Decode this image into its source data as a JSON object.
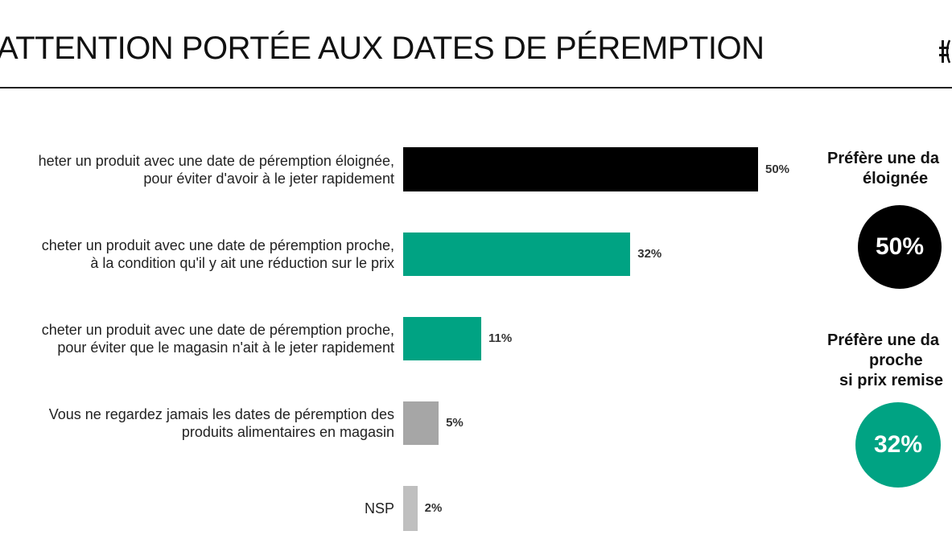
{
  "header": {
    "title": "ATTENTION PORTÉE AUX DATES DE PÉREMPTION"
  },
  "chart_data": {
    "type": "bar",
    "orientation": "horizontal",
    "categories": [
      [
        "heter un produit avec une date de péremption éloignée,",
        "pour éviter d'avoir à le jeter rapidement"
      ],
      [
        "cheter un produit avec une date de péremption proche,",
        "à la condition qu'il y ait une réduction sur le prix"
      ],
      [
        "cheter un produit avec une date de péremption proche,",
        "pour éviter que le magasin n'ait à le jeter rapidement"
      ],
      [
        "Vous ne regardez jamais les dates de péremption des",
        "produits alimentaires en magasin"
      ],
      [
        "NSP"
      ]
    ],
    "values": [
      50,
      32,
      11,
      5,
      2
    ],
    "value_labels": [
      "50%",
      "32%",
      "11%",
      "5%",
      "2%"
    ],
    "colors": [
      "#000000",
      "#00a383",
      "#00a383",
      "#a6a6a6",
      "#bfbfbf"
    ],
    "xlim": [
      0,
      100
    ],
    "grid": false
  },
  "side": {
    "items": [
      {
        "lines": [
          "Préfère une da",
          "éloignée"
        ],
        "value": "50%",
        "color": "#000000"
      },
      {
        "lines": [
          "Préfère une da",
          "proche",
          "si prix remise"
        ],
        "value": "32%",
        "color": "#00a383"
      }
    ]
  },
  "logo_icon": "brand-logo-icon"
}
